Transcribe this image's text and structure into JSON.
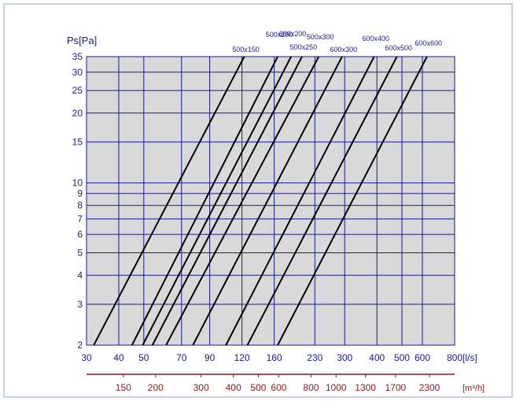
{
  "chart_data": {
    "type": "line",
    "ylabel": "Ps[Pa]",
    "x_unit": "[l/s]",
    "x2_unit": "[m³/h]",
    "scale": "log-log",
    "xlim": [
      30,
      800
    ],
    "ylim": [
      2,
      35
    ],
    "grid": true,
    "x_ticks": [
      30,
      40,
      50,
      70,
      90,
      120,
      160,
      230,
      300,
      400,
      500,
      600,
      800
    ],
    "x_tick_labels": [
      "30",
      "40",
      "50",
      "70",
      "90",
      "120",
      "160",
      "230",
      "300",
      "400",
      "500",
      "600",
      "800"
    ],
    "y_ticks": [
      2,
      3,
      4,
      5,
      6,
      7,
      8,
      9,
      10,
      15,
      20,
      25,
      30,
      35
    ],
    "y_tick_labels": [
      "2",
      "3",
      "4",
      "5",
      "6",
      "7",
      "8",
      "9",
      "10",
      "15",
      "20",
      "25",
      "30",
      "35"
    ],
    "x2_ticks": [
      150,
      200,
      300,
      400,
      500,
      600,
      800,
      1000,
      1300,
      1700,
      2300
    ],
    "x2_tick_labels": [
      "150",
      "200",
      "300",
      "400",
      "500",
      "600",
      "800",
      "1000",
      "1300",
      "1700",
      "2300"
    ],
    "series": [
      {
        "name": "500x150",
        "x": [
          32.0,
          122.5
        ],
        "y": [
          2,
          35
        ]
      },
      {
        "name": "500x200",
        "x": [
          45.0,
          165.0
        ],
        "y": [
          2,
          35
        ]
      },
      {
        "name": "600x200",
        "x": [
          49.5,
          186.0
        ],
        "y": [
          2,
          35
        ]
      },
      {
        "name": "500x250",
        "x": [
          54.0,
          205.0
        ],
        "y": [
          2,
          35
        ]
      },
      {
        "name": "500x300",
        "x": [
          61.0,
          238.0
        ],
        "y": [
          2,
          35
        ]
      },
      {
        "name": "600x300",
        "x": [
          77.5,
          293.0
        ],
        "y": [
          2,
          35
        ]
      },
      {
        "name": "600x400",
        "x": [
          104.0,
          390.0
        ],
        "y": [
          2,
          35
        ]
      },
      {
        "name": "600x500",
        "x": [
          126.0,
          478.0
        ],
        "y": [
          2,
          35
        ]
      },
      {
        "name": "600x600",
        "x": [
          165.0,
          625.0
        ],
        "y": [
          2,
          35
        ]
      }
    ],
    "colors": {
      "plot_bg": "#d9d9d9",
      "grid": "#1a1a8c",
      "line": "#000000",
      "axis_text": "#1a1a8c",
      "secondary_axis": "#8b1a1a"
    }
  }
}
